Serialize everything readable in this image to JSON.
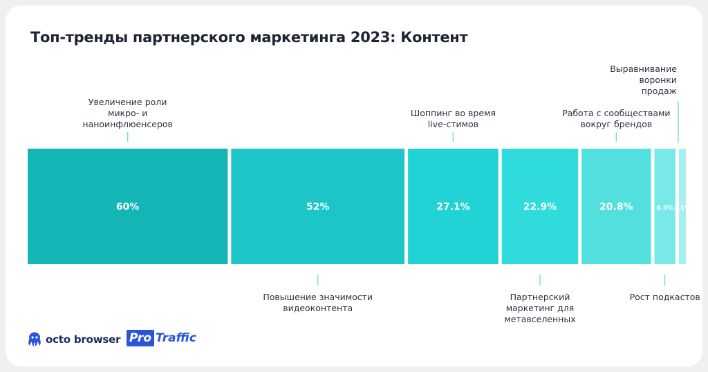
{
  "title": "Топ-тренды партнерского маркетинга 2023: Контент",
  "logos": {
    "octo": "octo browser",
    "pro_box": "Pro",
    "pro_text": "Traffic"
  },
  "chart_data": {
    "type": "bar",
    "orientation": "horizontal-stacked-treemap",
    "categories": [
      "Увеличение роли микро- и наноинфлюенсеров",
      "Повышение значимости видеоконтента",
      "Шоппинг во время live-стимов",
      "Партнерский маркетинг для метавселенных",
      "Работа с сообществами вокруг брендов",
      "Рост подкастов",
      "Выравнивание воронки продаж"
    ],
    "values": [
      60,
      52,
      27.1,
      22.9,
      20.8,
      6.3,
      2.1
    ],
    "value_labels": [
      "60%",
      "52%",
      "27.1%",
      "22.9%",
      "20.8%",
      "6.3%",
      "2.1%"
    ],
    "label_positions": [
      "top",
      "bottom",
      "top",
      "bottom",
      "top",
      "bottom",
      "top"
    ],
    "label_lines": [
      [
        "Увеличение роли",
        "микро- и",
        "наноинфлюенсеров"
      ],
      [
        "Повышение значимости",
        "видеоконтента"
      ],
      [
        "Шоппинг во время",
        "live-стимов"
      ],
      [
        "Партнерский",
        "маркетинг для",
        "метавселенных"
      ],
      [
        "Работа с сообществами",
        "вокруг брендов"
      ],
      [
        "Рост подкастов"
      ],
      [
        "Выравнивание",
        "воронки",
        "продаж"
      ]
    ],
    "colors": [
      "#14b5b5",
      "#1cc6c8",
      "#22d3d6",
      "#30dbdc",
      "#52e0df",
      "#78e8e9",
      "#a6f0f1"
    ],
    "tick_color": "#7ed8e0"
  }
}
